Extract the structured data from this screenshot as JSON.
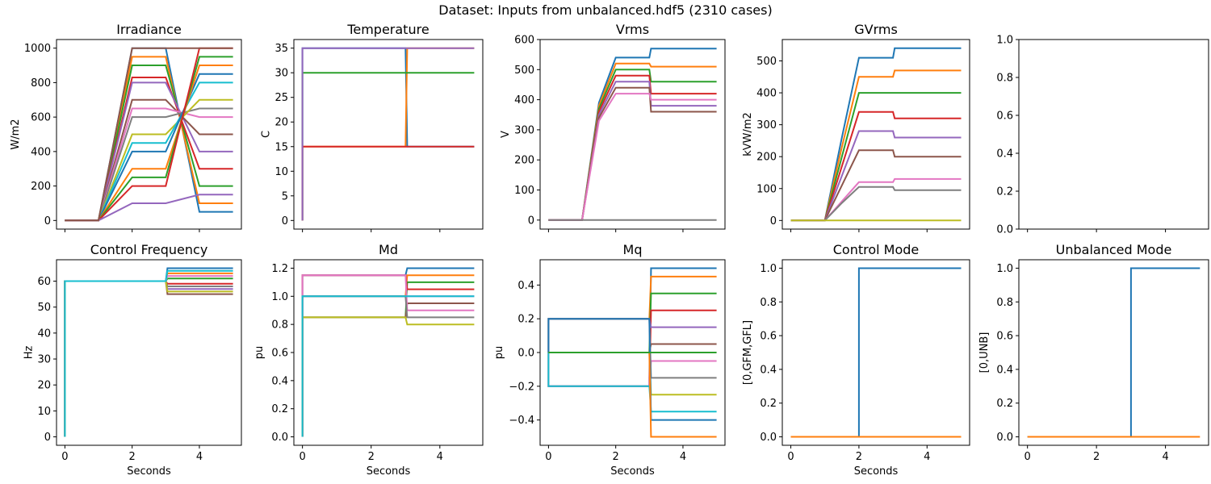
{
  "figure": {
    "suptitle": "Dataset: Inputs from unbalanced.hdf5 (2310 cases)"
  },
  "palette": [
    "#1f77b4",
    "#ff7f0e",
    "#2ca02c",
    "#d62728",
    "#9467bd",
    "#8c564b",
    "#e377c2",
    "#7f7f7f",
    "#bcbd22",
    "#17becf"
  ],
  "chart_data": [
    {
      "id": "irradiance",
      "type": "line",
      "title": "Irradiance",
      "xlabel": "",
      "ylabel": "W/m2",
      "xlim": [
        -0.25,
        5.25
      ],
      "ylim": [
        -50,
        1050
      ],
      "xticks": [
        0,
        2,
        4
      ],
      "xtick_labels": [
        "",
        "",
        ""
      ],
      "yticks": [
        0,
        200,
        400,
        600,
        800,
        1000
      ],
      "ytick_labels": [
        "0",
        "200",
        "400",
        "600",
        "800",
        "1000"
      ],
      "x": [
        0,
        1,
        2,
        3,
        4,
        5
      ],
      "series": [
        {
          "values": [
            0,
            0,
            1000,
            1000,
            50,
            50
          ]
        },
        {
          "values": [
            0,
            0,
            950,
            950,
            100,
            100
          ]
        },
        {
          "values": [
            0,
            0,
            900,
            900,
            200,
            200
          ]
        },
        {
          "values": [
            0,
            0,
            830,
            830,
            300,
            300
          ]
        },
        {
          "values": [
            0,
            0,
            800,
            800,
            400,
            400
          ]
        },
        {
          "values": [
            0,
            0,
            700,
            700,
            500,
            500
          ]
        },
        {
          "values": [
            0,
            0,
            650,
            650,
            600,
            600
          ]
        },
        {
          "values": [
            0,
            0,
            600,
            600,
            650,
            650
          ]
        },
        {
          "values": [
            0,
            0,
            500,
            500,
            700,
            700
          ]
        },
        {
          "values": [
            0,
            0,
            450,
            450,
            800,
            800
          ]
        },
        {
          "values": [
            0,
            0,
            400,
            400,
            850,
            850
          ]
        },
        {
          "values": [
            0,
            0,
            300,
            300,
            900,
            900
          ]
        },
        {
          "values": [
            0,
            0,
            250,
            250,
            950,
            950
          ]
        },
        {
          "values": [
            0,
            0,
            200,
            200,
            1000,
            1000
          ]
        },
        {
          "values": [
            0,
            0,
            100,
            100,
            150,
            150
          ]
        },
        {
          "values": [
            0,
            0,
            1000,
            1000,
            1000,
            1000
          ]
        }
      ]
    },
    {
      "id": "temperature",
      "type": "line",
      "title": "Temperature",
      "xlabel": "",
      "ylabel": "C",
      "xlim": [
        -0.25,
        5.25
      ],
      "ylim": [
        -1.75,
        36.75
      ],
      "xticks": [
        0,
        2,
        4
      ],
      "xtick_labels": [
        "",
        "",
        ""
      ],
      "yticks": [
        0,
        5,
        10,
        15,
        20,
        25,
        30,
        35
      ],
      "ytick_labels": [
        "0",
        "5",
        "10",
        "15",
        "20",
        "25",
        "30",
        "35"
      ],
      "x": [
        0,
        0,
        3,
        3.05,
        5
      ],
      "series": [
        {
          "values": [
            0,
            35,
            35,
            15,
            15
          ]
        },
        {
          "values": [
            0,
            15,
            15,
            35,
            35
          ]
        },
        {
          "values": [
            0,
            30,
            30,
            30,
            30
          ]
        },
        {
          "values": [
            0,
            15,
            15,
            15,
            15
          ]
        },
        {
          "values": [
            0,
            35,
            35,
            35,
            35
          ]
        }
      ]
    },
    {
      "id": "vrms",
      "type": "line",
      "title": "Vrms",
      "xlabel": "",
      "ylabel": "V",
      "xlim": [
        -0.25,
        5.25
      ],
      "ylim": [
        -30,
        600
      ],
      "xticks": [
        0,
        2,
        4
      ],
      "xtick_labels": [
        "",
        "",
        ""
      ],
      "yticks": [
        0,
        100,
        200,
        300,
        400,
        500,
        600
      ],
      "ytick_labels": [
        "0",
        "100",
        "200",
        "300",
        "400",
        "500",
        "600"
      ],
      "x": [
        0,
        1,
        1.5,
        2,
        3,
        3.05,
        5
      ],
      "series": [
        {
          "values": [
            0,
            0,
            390,
            540,
            540,
            570,
            570
          ]
        },
        {
          "values": [
            0,
            0,
            380,
            520,
            520,
            510,
            510
          ]
        },
        {
          "values": [
            0,
            0,
            370,
            500,
            500,
            460,
            460
          ]
        },
        {
          "values": [
            0,
            0,
            360,
            480,
            480,
            420,
            420
          ]
        },
        {
          "values": [
            0,
            0,
            350,
            460,
            460,
            380,
            380
          ]
        },
        {
          "values": [
            0,
            0,
            340,
            440,
            440,
            360,
            360
          ]
        },
        {
          "values": [
            0,
            0,
            330,
            420,
            420,
            400,
            400
          ]
        },
        {
          "values": [
            0,
            0,
            0,
            0,
            0,
            0,
            0
          ]
        }
      ]
    },
    {
      "id": "gvrms",
      "type": "line",
      "title": "GVrms",
      "xlabel": "",
      "ylabel": "kVW/m2",
      "xlim": [
        -0.25,
        5.25
      ],
      "ylim": [
        -27,
        567
      ],
      "xticks": [
        0,
        2,
        4
      ],
      "xtick_labels": [
        "",
        "",
        ""
      ],
      "yticks": [
        0,
        100,
        200,
        300,
        400,
        500
      ],
      "ytick_labels": [
        "0",
        "100",
        "200",
        "300",
        "400",
        "500"
      ],
      "x": [
        0,
        1,
        1.5,
        2,
        3,
        3.05,
        5
      ],
      "series": [
        {
          "values": [
            0,
            0,
            260,
            510,
            510,
            540,
            540
          ]
        },
        {
          "values": [
            0,
            0,
            230,
            450,
            450,
            470,
            470
          ]
        },
        {
          "values": [
            0,
            0,
            200,
            400,
            400,
            400,
            400
          ]
        },
        {
          "values": [
            0,
            0,
            170,
            340,
            340,
            320,
            320
          ]
        },
        {
          "values": [
            0,
            0,
            140,
            280,
            280,
            260,
            260
          ]
        },
        {
          "values": [
            0,
            0,
            110,
            220,
            220,
            200,
            200
          ]
        },
        {
          "values": [
            0,
            0,
            60,
            120,
            120,
            130,
            130
          ]
        },
        {
          "values": [
            0,
            0,
            55,
            105,
            105,
            95,
            95
          ]
        },
        {
          "values": [
            0,
            0,
            0,
            0,
            0,
            0,
            0
          ]
        }
      ]
    },
    {
      "id": "empty",
      "type": "line",
      "title": "",
      "xlabel": "",
      "ylabel": "",
      "xlim": [
        -0.25,
        5.25
      ],
      "ylim": [
        0,
        1
      ],
      "xticks": [
        0,
        2,
        4
      ],
      "xtick_labels": [
        "",
        "",
        ""
      ],
      "yticks": [
        0,
        0.2,
        0.4,
        0.6,
        0.8,
        1.0
      ],
      "ytick_labels": [
        "0.0",
        "0.2",
        "0.4",
        "0.6",
        "0.8",
        "1.0"
      ],
      "x": [],
      "series": []
    },
    {
      "id": "control-frequency",
      "type": "line",
      "title": "Control Frequency",
      "xlabel": "",
      "ylabel": "Hz",
      "xlim": [
        -0.25,
        5.25
      ],
      "ylim": [
        -3.25,
        68.25
      ],
      "xticks": [
        0,
        2,
        4
      ],
      "xtick_labels": [
        "0",
        "2",
        "4"
      ],
      "yticks": [
        0,
        10,
        20,
        30,
        40,
        50,
        60
      ],
      "ytick_labels": [
        "0",
        "10",
        "20",
        "30",
        "40",
        "50",
        "60"
      ],
      "x": [
        0,
        0,
        3,
        3.05,
        5
      ],
      "series": [
        {
          "values": [
            0,
            60,
            60,
            65,
            65
          ]
        },
        {
          "values": [
            0,
            60,
            60,
            63,
            63
          ]
        },
        {
          "values": [
            0,
            60,
            60,
            61,
            61
          ]
        },
        {
          "values": [
            0,
            60,
            60,
            59,
            59
          ]
        },
        {
          "values": [
            0,
            60,
            60,
            57,
            57
          ]
        },
        {
          "values": [
            0,
            60,
            60,
            55,
            55
          ]
        },
        {
          "values": [
            0,
            60,
            60,
            62,
            62
          ]
        },
        {
          "values": [
            0,
            60,
            60,
            58,
            58
          ]
        },
        {
          "values": [
            0,
            60,
            60,
            56,
            56
          ]
        },
        {
          "values": [
            0,
            60,
            60,
            64,
            64
          ]
        }
      ]
    },
    {
      "id": "md",
      "type": "line",
      "title": "Md",
      "xlabel": "",
      "ylabel": "pu",
      "xlim": [
        -0.25,
        5.25
      ],
      "ylim": [
        -0.06,
        1.26
      ],
      "xticks": [
        0,
        2,
        4
      ],
      "xtick_labels": [
        "0",
        "2",
        "4"
      ],
      "yticks": [
        0,
        0.2,
        0.4,
        0.6,
        0.8,
        1.0,
        1.2
      ],
      "ytick_labels": [
        "0.0",
        "0.2",
        "0.4",
        "0.6",
        "0.8",
        "1.0",
        "1.2"
      ],
      "x": [
        0,
        0,
        3,
        3.05,
        5
      ],
      "series": [
        {
          "values": [
            0,
            1.15,
            1.15,
            1.2,
            1.2
          ]
        },
        {
          "values": [
            0,
            1.0,
            1.0,
            1.15,
            1.15
          ]
        },
        {
          "values": [
            0,
            0.85,
            0.85,
            1.1,
            1.1
          ]
        },
        {
          "values": [
            0,
            1.15,
            1.15,
            1.05,
            1.05
          ]
        },
        {
          "values": [
            0,
            1.0,
            1.0,
            1.0,
            1.0
          ]
        },
        {
          "values": [
            0,
            0.85,
            0.85,
            0.95,
            0.95
          ]
        },
        {
          "values": [
            0,
            1.15,
            1.15,
            0.9,
            0.9
          ]
        },
        {
          "values": [
            0,
            1.0,
            1.0,
            0.85,
            0.85
          ]
        },
        {
          "values": [
            0,
            0.85,
            0.85,
            0.8,
            0.8
          ]
        },
        {
          "values": [
            0,
            1.0,
            1.0,
            1.0,
            1.0
          ]
        }
      ]
    },
    {
      "id": "mq",
      "type": "line",
      "title": "Mq",
      "xlabel": "",
      "ylabel": "pu",
      "xlim": [
        -0.25,
        5.25
      ],
      "ylim": [
        -0.55,
        0.55
      ],
      "xticks": [
        0,
        2,
        4
      ],
      "xtick_labels": [
        "0",
        "2",
        "4"
      ],
      "yticks": [
        -0.4,
        -0.2,
        0,
        0.2,
        0.4
      ],
      "ytick_labels": [
        "−0.4",
        "−0.2",
        "0.0",
        "0.2",
        "0.4"
      ],
      "x": [
        0,
        0,
        3,
        3.05,
        5
      ],
      "series": [
        {
          "values": [
            0,
            -0.2,
            -0.2,
            0.5,
            0.5
          ]
        },
        {
          "values": [
            0,
            0.2,
            0.2,
            0.45,
            0.45
          ]
        },
        {
          "values": [
            0,
            0,
            0,
            0.35,
            0.35
          ]
        },
        {
          "values": [
            0,
            -0.2,
            -0.2,
            0.25,
            0.25
          ]
        },
        {
          "values": [
            0,
            0.2,
            0.2,
            0.15,
            0.15
          ]
        },
        {
          "values": [
            0,
            0,
            0,
            0.05,
            0.05
          ]
        },
        {
          "values": [
            0,
            -0.2,
            -0.2,
            -0.05,
            -0.05
          ]
        },
        {
          "values": [
            0,
            0.2,
            0.2,
            -0.15,
            -0.15
          ]
        },
        {
          "values": [
            0,
            0,
            0,
            -0.25,
            -0.25
          ]
        },
        {
          "values": [
            0,
            -0.2,
            -0.2,
            -0.35,
            -0.35
          ]
        },
        {
          "values": [
            0,
            0.2,
            0.2,
            -0.4,
            -0.4
          ]
        },
        {
          "values": [
            0,
            0,
            0,
            -0.5,
            -0.5
          ]
        },
        {
          "values": [
            0,
            0,
            0,
            0,
            0
          ]
        }
      ]
    },
    {
      "id": "control-mode",
      "type": "line",
      "title": "Control Mode",
      "xlabel": "",
      "ylabel": "[0,GFM,GFL]",
      "xlim": [
        -0.25,
        5.25
      ],
      "ylim": [
        -0.05,
        1.05
      ],
      "xticks": [
        0,
        2,
        4
      ],
      "xtick_labels": [
        "0",
        "2",
        "4"
      ],
      "yticks": [
        0,
        0.2,
        0.4,
        0.6,
        0.8,
        1.0
      ],
      "ytick_labels": [
        "0.0",
        "0.2",
        "0.4",
        "0.6",
        "0.8",
        "1.0"
      ],
      "x": [
        0,
        2,
        2,
        5
      ],
      "series": [
        {
          "values": [
            0,
            0,
            1,
            1
          ]
        },
        {
          "values": [
            0,
            0,
            0,
            0
          ]
        }
      ]
    },
    {
      "id": "unbalanced-mode",
      "type": "line",
      "title": "Unbalanced Mode",
      "xlabel": "",
      "ylabel": "[0,UNB]",
      "xlim": [
        -0.25,
        5.25
      ],
      "ylim": [
        -0.05,
        1.05
      ],
      "xticks": [
        0,
        2,
        4
      ],
      "xtick_labels": [
        "0",
        "2",
        "4"
      ],
      "yticks": [
        0,
        0.2,
        0.4,
        0.6,
        0.8,
        1.0
      ],
      "ytick_labels": [
        "0.0",
        "0.2",
        "0.4",
        "0.6",
        "0.8",
        "1.0"
      ],
      "x": [
        0,
        3,
        3,
        5
      ],
      "series": [
        {
          "values": [
            0,
            0,
            1,
            1
          ]
        },
        {
          "values": [
            0,
            0,
            0,
            0
          ]
        }
      ]
    }
  ],
  "xlabels_bottom": [
    "Seconds",
    "Seconds",
    "Seconds",
    "Seconds",
    ""
  ]
}
